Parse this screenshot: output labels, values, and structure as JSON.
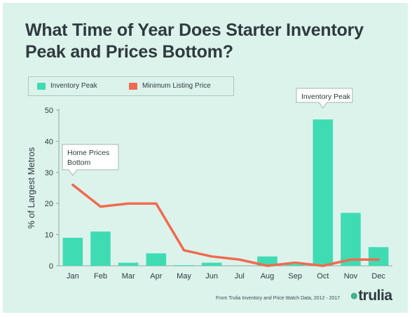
{
  "title": "What Time of Year Does Starter Inventory Peak and Prices Bottom?",
  "legend": {
    "items": [
      {
        "label": "Inventory Peak",
        "color": "#3fdcb4"
      },
      {
        "label": "Minimum Listing Price",
        "color": "#f06b4f"
      }
    ]
  },
  "source": "From Trulia Inventory and Price Watch Data, 2012 - 2017",
  "brand": "trulia",
  "chart_data": {
    "type": "bar",
    "categories": [
      "Jan",
      "Feb",
      "Mar",
      "Apr",
      "May",
      "Jun",
      "Jul",
      "Aug",
      "Sep",
      "Oct",
      "Nov",
      "Dec"
    ],
    "ylabel": "% of Largest Metros",
    "ylim": [
      0,
      50
    ],
    "yticks": [
      0,
      10,
      20,
      30,
      40,
      50
    ],
    "grid": false,
    "legend_position": "top-left",
    "series": [
      {
        "name": "Inventory Peak",
        "type": "bar",
        "color": "#3fdcb4",
        "values": [
          9,
          11,
          1,
          4,
          0.2,
          1,
          0,
          3,
          0.5,
          47,
          17,
          6
        ]
      },
      {
        "name": "Minimum Listing Price",
        "type": "line",
        "color": "#f06b4f",
        "values": [
          26,
          19,
          20,
          20,
          5,
          3,
          2,
          0,
          1,
          0,
          2,
          2
        ]
      }
    ],
    "annotations": [
      {
        "text_lines": [
          "Home Prices",
          "Bottom"
        ],
        "category": "Jan",
        "series": "Minimum Listing Price"
      },
      {
        "text_lines": [
          "Inventory Peak"
        ],
        "category": "Oct",
        "series": "Inventory Peak"
      }
    ]
  }
}
